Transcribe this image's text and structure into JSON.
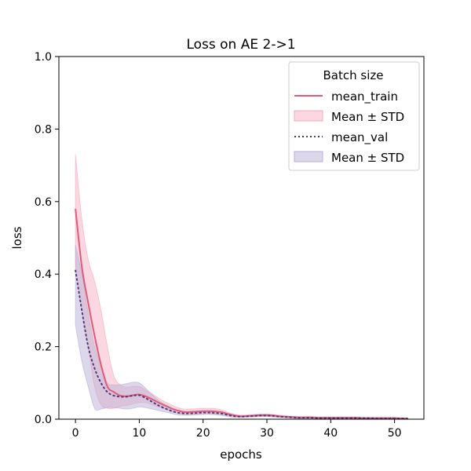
{
  "chart_data": {
    "type": "line",
    "title": "Loss on AE 2->1",
    "xlabel": "epochs",
    "ylabel": "loss",
    "xlim": [
      -2.6,
      54.6
    ],
    "ylim": [
      0,
      1.0
    ],
    "xticks": [
      0,
      10,
      20,
      30,
      40,
      50
    ],
    "yticks": [
      0.0,
      0.2,
      0.4,
      0.6,
      0.8,
      1.0
    ],
    "grid": false,
    "legend": {
      "title": "Batch size",
      "placement": "upper right",
      "entries": [
        "mean_train",
        "Mean ± STD",
        "mean_val",
        "Mean ± STD"
      ]
    },
    "x": [
      0,
      1,
      2,
      3,
      4,
      5,
      6,
      7,
      8,
      9,
      10,
      11,
      12,
      13,
      14,
      15,
      16,
      17,
      18,
      19,
      20,
      21,
      22,
      23,
      24,
      25,
      26,
      27,
      28,
      29,
      30,
      31,
      32,
      33,
      34,
      35,
      36,
      37,
      38,
      39,
      40,
      41,
      42,
      43,
      44,
      45,
      46,
      47,
      48,
      49,
      50,
      51,
      52
    ],
    "series": [
      {
        "name": "mean_train",
        "color": "#e05a7a",
        "style": "solid",
        "values": [
          0.58,
          0.42,
          0.32,
          0.23,
          0.15,
          0.09,
          0.075,
          0.065,
          0.063,
          0.066,
          0.068,
          0.063,
          0.055,
          0.046,
          0.038,
          0.03,
          0.024,
          0.02,
          0.02,
          0.021,
          0.022,
          0.022,
          0.021,
          0.019,
          0.014,
          0.01,
          0.008,
          0.009,
          0.01,
          0.011,
          0.011,
          0.01,
          0.008,
          0.007,
          0.006,
          0.005,
          0.005,
          0.005,
          0.004,
          0.004,
          0.004,
          0.004,
          0.004,
          0.004,
          0.004,
          0.003,
          0.003,
          0.003,
          0.003,
          0.003,
          0.003,
          0.002,
          0.002
        ],
        "band_color": "#f7a8bc",
        "band_upper": [
          0.73,
          0.55,
          0.44,
          0.38,
          0.3,
          0.2,
          0.12,
          0.095,
          0.088,
          0.09,
          0.09,
          0.08,
          0.07,
          0.058,
          0.048,
          0.04,
          0.032,
          0.028,
          0.028,
          0.029,
          0.03,
          0.03,
          0.029,
          0.025,
          0.018,
          0.013,
          0.011,
          0.012,
          0.013,
          0.014,
          0.014,
          0.013,
          0.011,
          0.009,
          0.008,
          0.007,
          0.007,
          0.007,
          0.006,
          0.006,
          0.006,
          0.006,
          0.006,
          0.006,
          0.006,
          0.005,
          0.005,
          0.005,
          0.005,
          0.005,
          0.005,
          0.004,
          0.004
        ],
        "band_lower": [
          0.43,
          0.3,
          0.2,
          0.09,
          0.04,
          0.03,
          0.03,
          0.035,
          0.038,
          0.042,
          0.046,
          0.046,
          0.04,
          0.034,
          0.028,
          0.022,
          0.017,
          0.014,
          0.014,
          0.014,
          0.015,
          0.015,
          0.014,
          0.013,
          0.01,
          0.007,
          0.006,
          0.006,
          0.007,
          0.008,
          0.008,
          0.007,
          0.005,
          0.005,
          0.004,
          0.003,
          0.003,
          0.003,
          0.002,
          0.002,
          0.002,
          0.002,
          0.002,
          0.002,
          0.002,
          0.001,
          0.001,
          0.001,
          0.001,
          0.001,
          0.001,
          0.001,
          0.001
        ]
      },
      {
        "name": "mean_val",
        "color": "#4e3a7a",
        "style": "dotted",
        "values": [
          0.41,
          0.3,
          0.2,
          0.14,
          0.1,
          0.075,
          0.065,
          0.062,
          0.062,
          0.065,
          0.066,
          0.058,
          0.048,
          0.038,
          0.03,
          0.023,
          0.018,
          0.016,
          0.016,
          0.017,
          0.018,
          0.018,
          0.017,
          0.015,
          0.011,
          0.008,
          0.007,
          0.008,
          0.009,
          0.01,
          0.01,
          0.009,
          0.007,
          0.006,
          0.005,
          0.004,
          0.004,
          0.004,
          0.003,
          0.003,
          0.003,
          0.003,
          0.003,
          0.003,
          0.003,
          0.003,
          0.003,
          0.002,
          0.002,
          0.002,
          0.002,
          0.002,
          0.002
        ],
        "band_color": "#b9b0d6",
        "band_upper": [
          0.48,
          0.4,
          0.29,
          0.2,
          0.15,
          0.1,
          0.095,
          0.095,
          0.098,
          0.102,
          0.1,
          0.085,
          0.068,
          0.052,
          0.04,
          0.031,
          0.024,
          0.021,
          0.021,
          0.022,
          0.023,
          0.023,
          0.022,
          0.02,
          0.015,
          0.011,
          0.009,
          0.01,
          0.012,
          0.013,
          0.013,
          0.012,
          0.009,
          0.008,
          0.007,
          0.006,
          0.006,
          0.006,
          0.005,
          0.005,
          0.005,
          0.005,
          0.005,
          0.005,
          0.005,
          0.004,
          0.004,
          0.004,
          0.004,
          0.004,
          0.004,
          0.003,
          0.003
        ],
        "band_lower": [
          0.26,
          0.16,
          0.09,
          0.03,
          0.028,
          0.032,
          0.032,
          0.03,
          0.028,
          0.03,
          0.034,
          0.032,
          0.028,
          0.024,
          0.02,
          0.016,
          0.012,
          0.011,
          0.011,
          0.012,
          0.013,
          0.013,
          0.012,
          0.01,
          0.007,
          0.005,
          0.005,
          0.006,
          0.006,
          0.007,
          0.007,
          0.006,
          0.005,
          0.004,
          0.003,
          0.002,
          0.002,
          0.002,
          0.001,
          0.001,
          0.001,
          0.001,
          0.001,
          0.001,
          0.001,
          0.002,
          0.002,
          0.001,
          0.001,
          0.001,
          0.001,
          0.001,
          0.001
        ]
      }
    ]
  }
}
